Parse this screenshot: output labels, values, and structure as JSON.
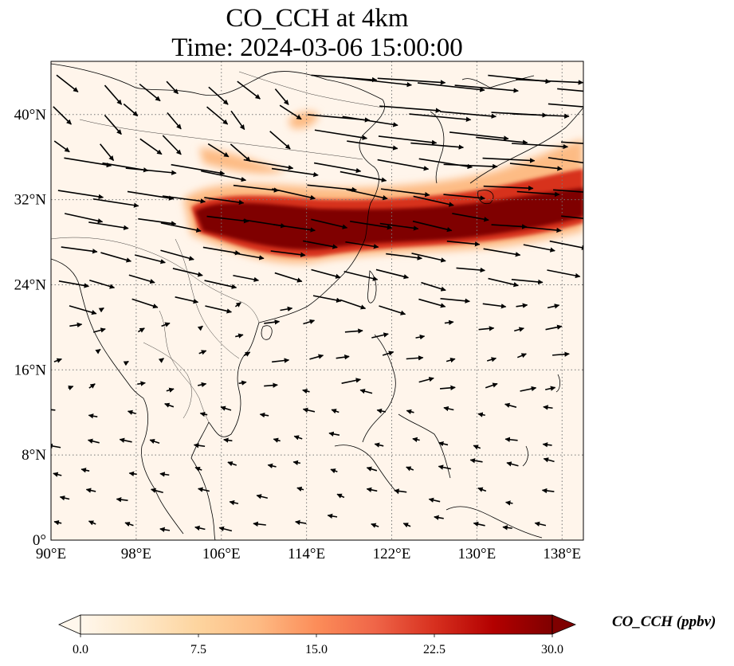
{
  "title": {
    "line1": "CO_CCH at 4km",
    "line2": "Time: 2024-03-06 15:00:00"
  },
  "map": {
    "variable": "CO_CCH",
    "level": "4km",
    "lon_range": [
      90,
      140
    ],
    "lat_range": [
      0,
      45
    ],
    "x_ticks": [
      "90°E",
      "98°E",
      "106°E",
      "114°E",
      "122°E",
      "130°E",
      "138°E"
    ],
    "x_tick_values": [
      90,
      98,
      106,
      114,
      122,
      130,
      138
    ],
    "y_ticks": [
      "0°",
      "8°N",
      "16°N",
      "24°N",
      "32°N",
      "40°N"
    ],
    "y_tick_values": [
      0,
      8,
      16,
      24,
      32,
      40
    ],
    "gridlines": "dotted",
    "background_color": "#fff5eb",
    "land_color": "#fdf0e2",
    "vectors": "wind arrows",
    "plume": {
      "description": "high CO band from Sichuan basin eastward across East China Sea to Japan",
      "core_color": "#7f0000",
      "mid_color": "#d7301f",
      "edge_color": "#fdbb84"
    }
  },
  "colorbar": {
    "label": "CO_CCH (ppbv)",
    "ticks": [
      "0.0",
      "7.5",
      "15.0",
      "22.5",
      "30.0"
    ],
    "tick_values": [
      0,
      7.5,
      15,
      22.5,
      30
    ],
    "extend": "both",
    "colormap": "OrRd",
    "colors": [
      "#fff7ec",
      "#fee8c8",
      "#fdd49e",
      "#fdbb84",
      "#fc8d59",
      "#ef6548",
      "#d7301f",
      "#b30000",
      "#7f0000"
    ]
  }
}
